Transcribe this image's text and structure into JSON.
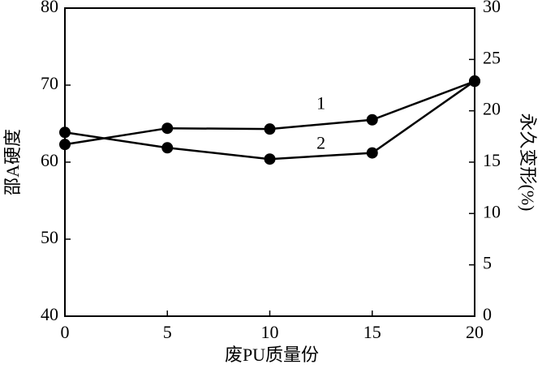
{
  "chart_data": {
    "type": "line",
    "x_label": "废PU质量份",
    "y_label": "邵A硬度",
    "y2_label": "永久变形(%)",
    "x": [
      0,
      5,
      10,
      15,
      20
    ],
    "xlim": [
      0,
      20
    ],
    "xticks": [
      0,
      5,
      10,
      15,
      20
    ],
    "ylim": [
      40,
      80
    ],
    "yticks": [
      40,
      50,
      60,
      70,
      80
    ],
    "y2lim": [
      0,
      30
    ],
    "y2ticks": [
      0,
      5,
      10,
      15,
      20,
      25,
      30
    ],
    "series": [
      {
        "name": "1",
        "color": "#000000",
        "values": [
          62.3,
          64.4,
          64.3,
          65.5,
          70.5
        ]
      },
      {
        "name": "2",
        "color": "#000000",
        "axis": "y2",
        "values": [
          17.9,
          16.4,
          15.3,
          15.9,
          22.9
        ]
      }
    ]
  }
}
